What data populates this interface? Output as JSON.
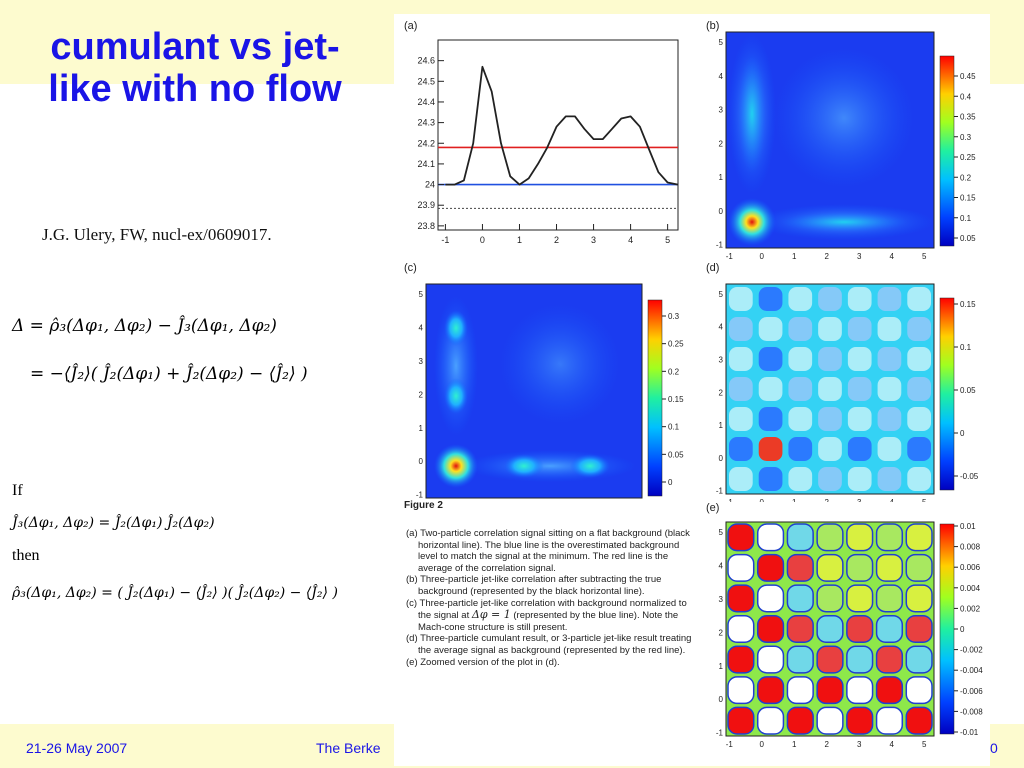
{
  "slide": {
    "title": "cumulant vs jet-like with no flow",
    "citation": "J.G. Ulery, FW, nucl-ex/0609017.",
    "equation1": "Δ = ρ̂₃(Δφ₁, Δφ₂) − Ĵ₃(Δφ₁, Δφ₂)",
    "equation2": "= −⟨Ĵ₂⟩( Ĵ₂(Δφ₁) + Ĵ₂(Δφ₂) − ⟨Ĵ₂⟩ )",
    "if_label": "If",
    "equation3": "Ĵ₃(Δφ₁, Δφ₂) = Ĵ₂(Δφ₁) Ĵ₂(Δφ₂)",
    "then_label": "then",
    "equation4": "ρ̂₃(Δφ₁, Δφ₂) = ( Ĵ₂(Δφ₁) − ⟨Ĵ₂⟩ )( Ĵ₂(Δφ₂) − ⟨Ĵ₂⟩ )"
  },
  "footer": {
    "date": "21-26 May 2007",
    "conference": "The Berke",
    "page": "0"
  },
  "colors": {
    "title": "#1a14e6",
    "band": "#fdfbcf"
  },
  "figure": {
    "title": "Figure 2",
    "panels": {
      "a": "(a)",
      "b": "(b)",
      "c": "(c)",
      "d": "(d)",
      "e": "(e)"
    },
    "caption": {
      "a": "(a) Two-particle correlation signal sitting on a flat background (black horizontal line). The blue line is the overestimated background level to match the signal at the minimum. The red line is the average of the correlation signal.",
      "b": "(b) Three-particle jet-like correlation after subtracting the true background (represented by the black horizontal line).",
      "c1": "(c) Three-particle jet-like correlation with background normalized to the signal at",
      "c_eq": "Δφ = 1",
      "c2": "(represented by the blue line). Note the Mach-cone structure is still present.",
      "d": "(d) Three-particle cumulant result, or 3-particle jet-like result treating the average signal as background (represented by the red line).",
      "e": "(e) Zoomed version of the plot in (d)."
    },
    "panel_b_scale": [
      "0.45",
      "0.4",
      "0.35",
      "0.3",
      "0.25",
      "0.2",
      "0.15",
      "0.1",
      "0.05"
    ],
    "panel_c_scale": [
      "0.3",
      "0.25",
      "0.2",
      "0.15",
      "0.1",
      "0.05",
      "0"
    ],
    "panel_d_scale": [
      "0.15",
      "0.1",
      "0.05",
      "0",
      "-0.05"
    ],
    "panel_e_scale": [
      "0.01",
      "0.008",
      "0.006",
      "0.004",
      "0.002",
      "0",
      "-0.002",
      "-0.004",
      "-0.006",
      "-0.008",
      "-0.01"
    ],
    "map_xticks": [
      "-1",
      "0",
      "1",
      "2",
      "3",
      "4",
      "5"
    ],
    "map_yticks": [
      "-1",
      "0",
      "1",
      "2",
      "3",
      "4",
      "5"
    ]
  },
  "chart_data": {
    "type": "line",
    "panel": "(a)",
    "x": [
      -1,
      -0.75,
      -0.5,
      -0.25,
      0,
      0.25,
      0.5,
      0.75,
      1,
      1.25,
      1.5,
      1.75,
      2,
      2.25,
      2.5,
      2.75,
      3,
      3.25,
      3.5,
      3.75,
      4,
      4.25,
      4.5,
      4.75,
      5,
      5.28
    ],
    "series": [
      {
        "values": [
          24.0,
          24.0,
          24.02,
          24.2,
          24.57,
          24.45,
          24.2,
          24.04,
          24.0,
          24.03,
          24.1,
          24.18,
          24.28,
          24.33,
          24.33,
          24.27,
          24.22,
          24.22,
          24.27,
          24.32,
          24.33,
          24.28,
          24.17,
          24.06,
          24.01,
          24.0
        ],
        "color": "#222222"
      }
    ],
    "reference_lines": [
      {
        "y": 24.18,
        "color": "#e02020"
      },
      {
        "y": 24.0,
        "color": "#2050e0"
      },
      {
        "y": 23.885,
        "color": "#444444",
        "style": "dotted"
      }
    ],
    "xlim": [
      -1.2,
      5.28
    ],
    "ylim": [
      23.78,
      24.7
    ],
    "xticks": [
      "-1",
      "0",
      "1",
      "2",
      "3",
      "4",
      "5"
    ],
    "yticks": [
      "23.8",
      "23.9",
      "24",
      "24.1",
      "24.2",
      "24.3",
      "24.4",
      "24.5",
      "24.6"
    ],
    "grid": false
  }
}
